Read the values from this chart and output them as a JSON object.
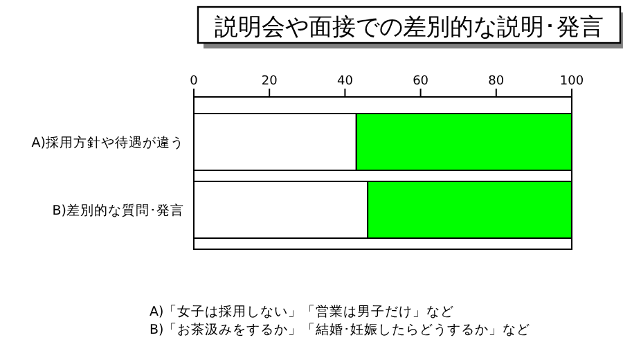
{
  "chart_data": {
    "type": "bar",
    "orientation": "horizontal",
    "stacked": true,
    "title": "説明会や面接での差別的な説明･発言",
    "categories": [
      "A)採用方針や待遇が違う",
      "B)差別的な質問･発言"
    ],
    "series": [
      {
        "color": "#ffffff",
        "values": [
          43,
          46
        ]
      },
      {
        "color": "#00ff00",
        "values": [
          57,
          54
        ]
      }
    ],
    "xlim": [
      0,
      100
    ],
    "xticks": [
      0,
      20,
      40,
      60,
      80,
      100
    ],
    "annotations": [
      "A)「女子は採用しない」「営業は男子だけ」など",
      "B)「お茶汲みをするか」「結婚･妊娠したらどうするか」など"
    ]
  }
}
